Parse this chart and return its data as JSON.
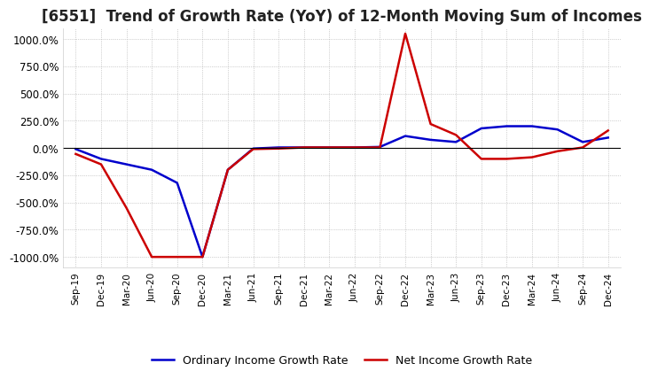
{
  "title": "[6551]  Trend of Growth Rate (YoY) of 12-Month Moving Sum of Incomes",
  "title_fontsize": 12,
  "ylim": [
    -1100,
    1100
  ],
  "yticks": [
    -1000,
    -750,
    -500,
    -250,
    0,
    250,
    500,
    750,
    1000
  ],
  "ytick_labels": [
    "-1000.0%",
    "-750.0%",
    "-500.0%",
    "-250.0%",
    "0.0%",
    "250.0%",
    "500.0%",
    "750.0%",
    "1000.0%"
  ],
  "background_color": "#ffffff",
  "plot_bg_color": "#ffffff",
  "grid_color": "#aaaaaa",
  "ordinary_color": "#0000cc",
  "net_color": "#cc0000",
  "x_dates": [
    "Sep-19",
    "Dec-19",
    "Mar-20",
    "Jun-20",
    "Sep-20",
    "Dec-20",
    "Mar-21",
    "Jun-21",
    "Sep-21",
    "Dec-21",
    "Mar-22",
    "Jun-22",
    "Sep-22",
    "Dec-22",
    "Mar-23",
    "Jun-23",
    "Sep-23",
    "Dec-23",
    "Mar-24",
    "Jun-24",
    "Sep-24",
    "Dec-24"
  ],
  "ordinary_income_growth": [
    -10,
    -100,
    -150,
    -200,
    -320,
    -1000,
    -200,
    -5,
    5,
    5,
    5,
    5,
    10,
    110,
    75,
    55,
    180,
    200,
    200,
    170,
    55,
    95
  ],
  "net_income_growth": [
    -55,
    -150,
    -550,
    -1000,
    -1000,
    -1000,
    -200,
    -10,
    -5,
    5,
    5,
    5,
    5,
    1050,
    220,
    120,
    -100,
    -100,
    -85,
    -30,
    5,
    160
  ],
  "legend_ordinary": "Ordinary Income Growth Rate",
  "legend_net": "Net Income Growth Rate",
  "line_width": 1.8
}
